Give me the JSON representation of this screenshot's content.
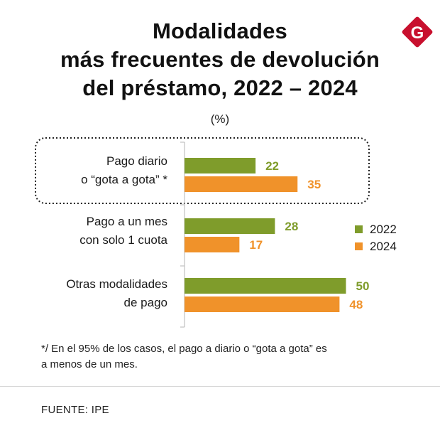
{
  "title": {
    "line1": "Modalidades",
    "line2": "más frecuentes de devolución",
    "line3": "del préstamo, 2022 – 2024"
  },
  "unit": "(%)",
  "logo": {
    "letter": "G",
    "color": "#c8102e",
    "icon": "g-logo-icon"
  },
  "chart_data": {
    "type": "bar",
    "orientation": "horizontal",
    "categories": [
      [
        "Pago diario",
        "o “gota a gota” *"
      ],
      [
        "Pago a un mes",
        "con solo 1 cuota"
      ],
      [
        "Otras modalidades",
        "de pago"
      ]
    ],
    "series": [
      {
        "name": "2022",
        "color": "#7f9c2b",
        "label_color": "#7f9c2b",
        "values": [
          22,
          28,
          50
        ]
      },
      {
        "name": "2024",
        "color": "#f0922a",
        "label_color": "#f0922a",
        "values": [
          35,
          17,
          48
        ]
      }
    ],
    "xlim": [
      0,
      50
    ],
    "grid": false,
    "legend": "right",
    "highlight_category": 0
  },
  "footnote": {
    "line1": "*/ En el 95% de los casos, el pago a diario o “gota a gota” es",
    "line2": "a menos de un mes."
  },
  "source": "FUENTE: IPE"
}
